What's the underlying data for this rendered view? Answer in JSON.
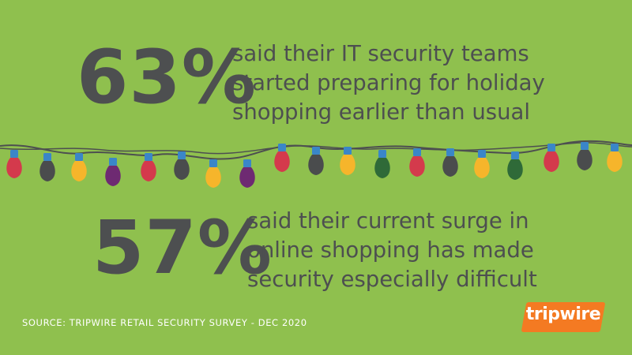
{
  "stats": [
    {
      "value": "63%",
      "lines": [
        "said their IT security teams",
        "started preparing for holiday",
        "shopping earlier than usual"
      ]
    },
    {
      "value": "57%",
      "lines": [
        "said their current surge in",
        "online shopping has made",
        "security especially difficult"
      ]
    }
  ],
  "source": "SOURCE: TRIPWIRE RETAIL SECURITY SURVEY - DEC 2020",
  "logo": {
    "text": "tripwire"
  },
  "colors": {
    "background": "#8fc04e",
    "text": "#4d4f50",
    "brand": "#f47a22",
    "bulbs": [
      "#d43a4c",
      "#4a4c4d",
      "#f6b52b",
      "#6e2a72",
      "#2f6a38"
    ],
    "bulb_caps": "#3a86c8"
  },
  "string_lights": {
    "bulb_colors": [
      "red",
      "dark",
      "yellow",
      "purple",
      "red",
      "dark",
      "yellow",
      "purple",
      "red",
      "dark",
      "yellow",
      "green",
      "red",
      "dark",
      "yellow",
      "green",
      "red",
      "dark",
      "yellow"
    ]
  }
}
